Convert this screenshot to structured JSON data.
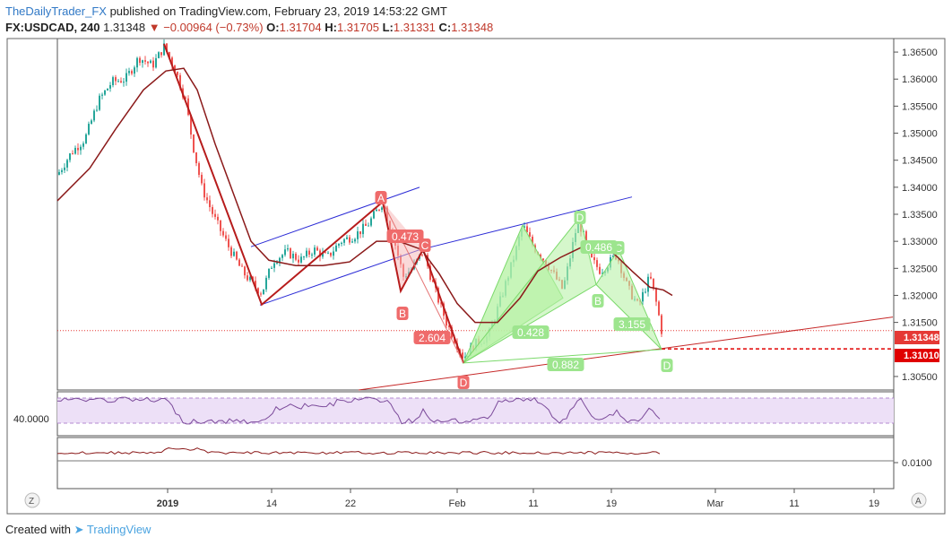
{
  "header": {
    "publisher": "TheDailyTrader_FX",
    "published_text": "published on TradingView.com, February 23, 2019 14:53:22 GMT",
    "symbol": "FX:USDCAD, 240",
    "last": "1.31348",
    "change": "−0.00964 (−0.73%)",
    "o_label": "O:",
    "o": "1.31704",
    "h_label": "H:",
    "h": "1.31705",
    "l_label": "L:",
    "l": "1.31331",
    "c_label": "C:",
    "c": "1.31348"
  },
  "footer": {
    "created_with": "Created with",
    "brand": "TradingView"
  },
  "price_axis": {
    "ticks": [
      "1.36500",
      "1.36000",
      "1.35500",
      "1.35000",
      "1.34500",
      "1.34000",
      "1.33500",
      "1.33000",
      "1.32500",
      "1.32000",
      "1.31500",
      "1.30500"
    ],
    "last_price_tag": "1.31348",
    "level_tag": "1.31010"
  },
  "rsi_panel": {
    "level_label": "40.0000"
  },
  "lower_panel": {
    "tick_label": "0.0100"
  },
  "time_axis": {
    "ticks": [
      "2019",
      "14",
      "22",
      "Feb",
      "11",
      "19",
      "Mar",
      "11",
      "19"
    ]
  },
  "corner_buttons": {
    "left": "Z",
    "right": "A"
  },
  "pattern_labels": {
    "bear_A": "A",
    "bear_B": "B",
    "bear_C": "C",
    "bear_D": "D",
    "bear_ratio_1": "0.473",
    "bear_ratio_2": "2.604",
    "bull_X": "D",
    "bull_B": "B",
    "bull_C": "C",
    "bull_D": "D",
    "bull_ratio_1": "0.428",
    "bull_ratio_2": "0.486",
    "bull_ratio_3": "3.155",
    "bull_ratio_4": "0.882"
  },
  "colors": {
    "up_candle": "#26a69a",
    "down_candle": "#ef5350",
    "moving_average": "#8b1a1a",
    "harmonic_bear": "#b71c1c",
    "harmonic_bull_fill": "#b9f2a8",
    "channel": "#2b2bd6",
    "trendline": "#c62828",
    "rsi_band": "#ede0f7",
    "last_price": "#e53935"
  },
  "chart_data": {
    "type": "candlestick",
    "symbol": "FX:USDCAD",
    "timeframe": "240",
    "ylim": [
      1.3025,
      1.3675
    ],
    "level_line": 1.3101,
    "last_price": 1.31348,
    "close_path": [
      {
        "x": 64,
        "y": 1.3423
      },
      {
        "x": 80,
        "y": 1.3465
      },
      {
        "x": 95,
        "y": 1.349
      },
      {
        "x": 110,
        "y": 1.356
      },
      {
        "x": 125,
        "y": 1.3595
      },
      {
        "x": 140,
        "y": 1.36
      },
      {
        "x": 155,
        "y": 1.364
      },
      {
        "x": 170,
        "y": 1.3625
      },
      {
        "x": 183,
        "y": 1.366
      },
      {
        "x": 195,
        "y": 1.362
      },
      {
        "x": 207,
        "y": 1.356
      },
      {
        "x": 215,
        "y": 1.348
      },
      {
        "x": 225,
        "y": 1.34
      },
      {
        "x": 240,
        "y": 1.334
      },
      {
        "x": 255,
        "y": 1.329
      },
      {
        "x": 270,
        "y": 1.3245
      },
      {
        "x": 285,
        "y": 1.3215
      },
      {
        "x": 292,
        "y": 1.3205
      },
      {
        "x": 305,
        "y": 1.3265
      },
      {
        "x": 320,
        "y": 1.328
      },
      {
        "x": 335,
        "y": 1.3265
      },
      {
        "x": 350,
        "y": 1.3285
      },
      {
        "x": 365,
        "y": 1.327
      },
      {
        "x": 380,
        "y": 1.33
      },
      {
        "x": 395,
        "y": 1.331
      },
      {
        "x": 410,
        "y": 1.333
      },
      {
        "x": 427,
        "y": 1.3373
      },
      {
        "x": 440,
        "y": 1.33
      },
      {
        "x": 450,
        "y": 1.3235
      },
      {
        "x": 460,
        "y": 1.325
      },
      {
        "x": 472,
        "y": 1.3282
      },
      {
        "x": 485,
        "y": 1.321
      },
      {
        "x": 498,
        "y": 1.315
      },
      {
        "x": 517,
        "y": 1.3085
      },
      {
        "x": 530,
        "y": 1.311
      },
      {
        "x": 545,
        "y": 1.3125
      },
      {
        "x": 560,
        "y": 1.32
      },
      {
        "x": 575,
        "y": 1.328
      },
      {
        "x": 583,
        "y": 1.333
      },
      {
        "x": 595,
        "y": 1.329
      },
      {
        "x": 610,
        "y": 1.326
      },
      {
        "x": 628,
        "y": 1.321
      },
      {
        "x": 645,
        "y": 1.334
      },
      {
        "x": 660,
        "y": 1.3265
      },
      {
        "x": 670,
        "y": 1.3245
      },
      {
        "x": 688,
        "y": 1.3275
      },
      {
        "x": 700,
        "y": 1.3215
      },
      {
        "x": 712,
        "y": 1.318
      },
      {
        "x": 725,
        "y": 1.3235
      },
      {
        "x": 733,
        "y": 1.318
      },
      {
        "x": 738,
        "y": 1.3135
      }
    ],
    "moving_average_path": [
      {
        "x": 64,
        "y": 1.3375
      },
      {
        "x": 100,
        "y": 1.3435
      },
      {
        "x": 130,
        "y": 1.351
      },
      {
        "x": 160,
        "y": 1.358
      },
      {
        "x": 185,
        "y": 1.3615
      },
      {
        "x": 205,
        "y": 1.362
      },
      {
        "x": 220,
        "y": 1.358
      },
      {
        "x": 240,
        "y": 1.348
      },
      {
        "x": 260,
        "y": 1.339
      },
      {
        "x": 280,
        "y": 1.33
      },
      {
        "x": 300,
        "y": 1.3265
      },
      {
        "x": 330,
        "y": 1.3255
      },
      {
        "x": 360,
        "y": 1.3255
      },
      {
        "x": 390,
        "y": 1.3262
      },
      {
        "x": 420,
        "y": 1.33
      },
      {
        "x": 445,
        "y": 1.33
      },
      {
        "x": 470,
        "y": 1.3285
      },
      {
        "x": 490,
        "y": 1.324
      },
      {
        "x": 510,
        "y": 1.3185
      },
      {
        "x": 530,
        "y": 1.315
      },
      {
        "x": 555,
        "y": 1.315
      },
      {
        "x": 580,
        "y": 1.3195
      },
      {
        "x": 600,
        "y": 1.3245
      },
      {
        "x": 625,
        "y": 1.327
      },
      {
        "x": 650,
        "y": 1.329
      },
      {
        "x": 680,
        "y": 1.3285
      },
      {
        "x": 705,
        "y": 1.3245
      },
      {
        "x": 725,
        "y": 1.3215
      },
      {
        "x": 740,
        "y": 1.321
      },
      {
        "x": 750,
        "y": 1.32
      }
    ],
    "bear_pattern": [
      {
        "x": 183,
        "y": 1.3665
      },
      {
        "x": 292,
        "y": 1.3183
      },
      {
        "x": 427,
        "y": 1.3373
      },
      {
        "x": 447,
        "y": 1.3208
      },
      {
        "x": 472,
        "y": 1.3285
      },
      {
        "x": 517,
        "y": 1.3075
      }
    ],
    "bull_pattern": [
      {
        "x": 517,
        "y": 1.3075
      },
      {
        "x": 583,
        "y": 1.333
      },
      {
        "x": 628,
        "y": 1.3195
      },
      {
        "x": 647,
        "y": 1.3345
      },
      {
        "x": 665,
        "y": 1.322
      },
      {
        "x": 690,
        "y": 1.3285
      },
      {
        "x": 705,
        "y": 1.317
      },
      {
        "x": 738,
        "y": 1.31
      }
    ],
    "channel": [
      {
        "x1": 280,
        "y1": 1.329,
        "x2": 468,
        "y2": 1.34
      },
      {
        "x1": 290,
        "y1": 1.3182,
        "x2": 478,
        "y2": 1.329
      },
      {
        "x1": 470,
        "y1": 1.3285,
        "x2": 705,
        "y2": 1.3382
      }
    ],
    "trendline": {
      "x1": 400,
      "y1": 1.3025,
      "x2": 996,
      "y2": 1.316
    }
  }
}
